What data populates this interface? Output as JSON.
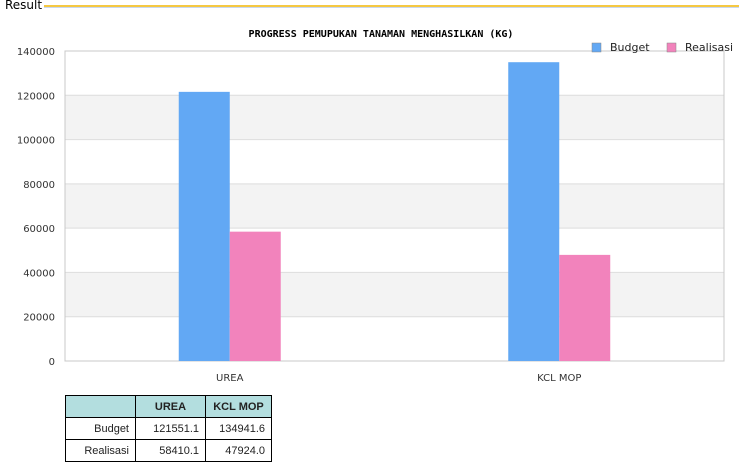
{
  "window": {
    "section_label": "Result"
  },
  "colors": {
    "budget": "#62a8f4",
    "realisasi": "#f283bc",
    "table_header": "#b3dedf"
  },
  "chart_data": {
    "type": "bar",
    "title": "PROGRESS PEMUPUKAN TANAMAN MENGHASILKAN (KG)",
    "categories": [
      "UREA",
      "KCL MOP"
    ],
    "series": [
      {
        "name": "Budget",
        "values": [
          121551.1,
          134941.6
        ]
      },
      {
        "name": "Realisasi",
        "values": [
          58410.1,
          47924.0
        ]
      }
    ],
    "ylim": [
      0,
      140000
    ],
    "yticks": [
      0,
      20000,
      40000,
      60000,
      80000,
      100000,
      120000,
      140000
    ],
    "legend": "top-right",
    "grid": true
  },
  "table": {
    "headers": [
      "",
      "UREA",
      "KCL MOP"
    ],
    "rows": [
      {
        "label": "Budget",
        "values": [
          "121551.1",
          "134941.6"
        ]
      },
      {
        "label": "Realisasi",
        "values": [
          "58410.1",
          "47924.0"
        ]
      }
    ]
  }
}
